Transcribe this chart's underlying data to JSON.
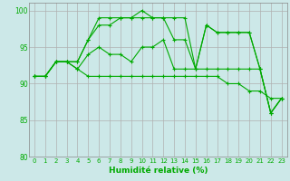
{
  "xlabel": "Humidité relative (%)",
  "bg_color": "#cce8e8",
  "grid_color": "#b0b0b0",
  "line_color": "#00aa00",
  "ylim": [
    80,
    101
  ],
  "xlim": [
    -0.5,
    23.5
  ],
  "yticks": [
    80,
    85,
    90,
    95,
    100
  ],
  "xticks": [
    0,
    1,
    2,
    3,
    4,
    5,
    6,
    7,
    8,
    9,
    10,
    11,
    12,
    13,
    14,
    15,
    16,
    17,
    18,
    19,
    20,
    21,
    22,
    23
  ],
  "series": [
    [
      91,
      91,
      93,
      93,
      92,
      91,
      91,
      91,
      91,
      91,
      91,
      91,
      91,
      91,
      91,
      91,
      91,
      91,
      90,
      90,
      89,
      89,
      88,
      88
    ],
    [
      91,
      91,
      93,
      93,
      92,
      94,
      95,
      94,
      94,
      93,
      95,
      95,
      96,
      92,
      92,
      92,
      92,
      92,
      92,
      92,
      92,
      92,
      86,
      88
    ],
    [
      91,
      91,
      93,
      93,
      93,
      96,
      98,
      98,
      99,
      99,
      99,
      99,
      99,
      96,
      96,
      92,
      98,
      97,
      97,
      97,
      97,
      92,
      86,
      88
    ],
    [
      91,
      91,
      93,
      93,
      93,
      96,
      99,
      99,
      99,
      99,
      100,
      99,
      99,
      99,
      99,
      92,
      98,
      97,
      97,
      97,
      97,
      92,
      86,
      88
    ]
  ]
}
